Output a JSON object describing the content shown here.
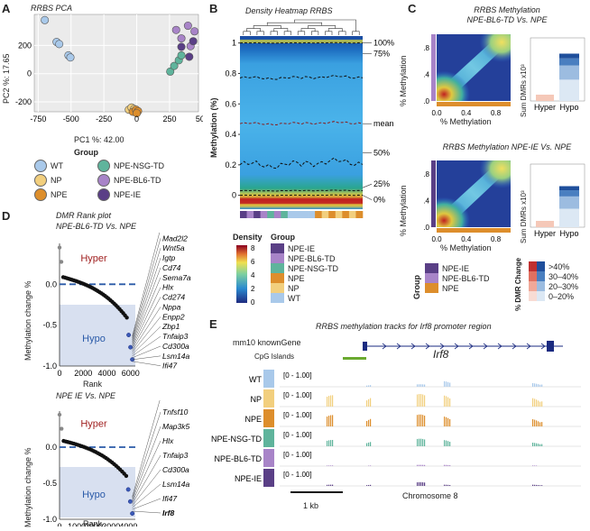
{
  "panels": {
    "a": "A",
    "b": "B",
    "c": "C",
    "d": "D",
    "e": "E"
  },
  "pca": {
    "title": "RRBS PCA",
    "xlabel": "PC1 %: 42.00",
    "ylabel": "PC2 %: 17.65",
    "xticks": [
      "-750",
      "-500",
      "-250",
      "0",
      "250",
      "500"
    ],
    "yticks": [
      "200",
      "0",
      "-200"
    ],
    "legend_title": "Group",
    "legend": [
      {
        "label": "WT",
        "color": "#a9c9ea"
      },
      {
        "label": "NP",
        "color": "#f2cf7e"
      },
      {
        "label": "NPE",
        "color": "#dd8e2c"
      },
      {
        "label": "NPE-NSG-TD",
        "color": "#5fb49c"
      },
      {
        "label": "NPE-BL6-TD",
        "color": "#a884c8"
      },
      {
        "label": "NPE-IE",
        "color": "#5a3f86"
      }
    ]
  },
  "chart_data": [
    {
      "type": "scatter",
      "title": "RRBS PCA",
      "xlabel": "PC1 %: 42.00",
      "ylabel": "PC2 %: 17.65",
      "xlim": [
        -780,
        470
      ],
      "ylim": [
        -270,
        420
      ],
      "series": [
        {
          "name": "WT",
          "points": [
            [
              -700,
              380
            ],
            [
              -610,
              225
            ],
            [
              -590,
              210
            ],
            [
              -520,
              130
            ],
            [
              -505,
              115
            ]
          ]
        },
        {
          "name": "NP",
          "points": [
            [
              -60,
              -255
            ],
            [
              -40,
              -240
            ],
            [
              -20,
              -250
            ]
          ]
        },
        {
          "name": "NPE",
          "points": [
            [
              -30,
              -270
            ],
            [
              -5,
              -255
            ],
            [
              10,
              -265
            ],
            [
              0,
              -280
            ]
          ]
        },
        {
          "name": "NPE-NSG-TD",
          "points": [
            [
              255,
              15
            ],
            [
              285,
              55
            ],
            [
              320,
              95
            ],
            [
              340,
              130
            ]
          ]
        },
        {
          "name": "NPE-BL6-TD",
          "points": [
            [
              300,
              310
            ],
            [
              340,
              250
            ],
            [
              390,
              340
            ],
            [
              410,
              195
            ],
            [
              440,
              300
            ]
          ]
        },
        {
          "name": "NPE-IE",
          "points": [
            [
              340,
              190
            ],
            [
              400,
              120
            ],
            [
              430,
              230
            ]
          ]
        }
      ]
    },
    {
      "type": "line",
      "title": "DMR Rank plot NPE-BL6-TD Vs. NPE",
      "xlabel": "Rank",
      "ylabel": "Methylation change %",
      "xlim": [
        0,
        6400
      ],
      "ylim": [
        -1.0,
        0.5
      ],
      "xticks": [
        "0",
        "2000",
        "4000",
        "6000"
      ],
      "yticks": [
        "0.0",
        "-0.5",
        "-1.0"
      ]
    },
    {
      "type": "line",
      "title": "NPE IE Vs. NPE",
      "xlabel": "Rank",
      "ylabel": "Methylation change %",
      "xlim": [
        0,
        4400
      ],
      "ylim": [
        -1.0,
        0.5
      ],
      "xticks": [
        "0",
        "1000",
        "2000",
        "3000",
        "4000"
      ],
      "yticks": [
        "0.0",
        "-0.5",
        "-1.0"
      ]
    },
    {
      "type": "bar",
      "title": "Sum DMRs x10^3 NPE-BL6-TD Vs. NPE",
      "categories": [
        "Hyper",
        "Hypo"
      ],
      "values": [
        2,
        15
      ]
    },
    {
      "type": "bar",
      "title": "Sum DMRs x10^3 NPE-IE Vs. NPE",
      "categories": [
        "Hyper",
        "Hypo"
      ],
      "values": [
        2,
        13
      ]
    }
  ],
  "heatmap": {
    "title": "Density Heatmap RRBS",
    "ylabel": "Methylation (%)",
    "yticks": [
      "1",
      "0.8",
      "0.6",
      "0.4",
      "0.2",
      "0"
    ],
    "right_labels": [
      "100%",
      "75%",
      "mean",
      "50%",
      "25%",
      "0%"
    ],
    "density_title": "Density",
    "density_ticks": [
      "8",
      "6",
      "4",
      "2",
      "0"
    ],
    "group_title": "Group",
    "group_legend": [
      {
        "label": "NPE-IE",
        "color": "#5a3f86"
      },
      {
        "label": "NPE-BL6-TD",
        "color": "#a884c8"
      },
      {
        "label": "NPE-NSG-TD",
        "color": "#5fb49c"
      },
      {
        "label": "NPE",
        "color": "#dd8e2c"
      },
      {
        "label": "NP",
        "color": "#f2cf7e"
      },
      {
        "label": "WT",
        "color": "#a9c9ea"
      }
    ]
  },
  "dmr": {
    "title1a": "DMR Rank plot",
    "title1b": "NPE-BL6-TD Vs. NPE",
    "title2": "NPE IE Vs. NPE",
    "hyper": "Hyper",
    "hypo": "Hypo",
    "ylabel": "Methylation change %",
    "xlabel": "Rank",
    "yt": [
      "0.0",
      "-0.5",
      "-1.0"
    ],
    "xt1": [
      "0",
      "2000",
      "4000",
      "6000"
    ],
    "xt2": [
      "0",
      "1000",
      "2000",
      "3000",
      "4000"
    ],
    "genes1": [
      "Irf8",
      "Mad2l2",
      "Wnt5a",
      "Igtp",
      "Cd74",
      "Sema7a",
      "Hlx",
      "Cd274",
      "Nppa",
      "Enpp2",
      "Zbp1",
      "Tnfaip3",
      "Cd300a",
      "Lsm14a",
      "Ifi47"
    ],
    "genes2": [
      "Cd274",
      "Tnfsf10",
      "Map3k5",
      "Hlx",
      "Tnfaip3",
      "Cd300a",
      "Lsm14a",
      "Ifi47",
      "Irf8"
    ]
  },
  "meth": {
    "title1a": "RRBS Methylation",
    "title1b": "NPE-BL6-TD Vs. NPE",
    "title2": "RRBS Methylation NPE-IE Vs. NPE",
    "xlabel": "% Methylation",
    "ylabel": "% Methylation",
    "ticks": [
      "0.0",
      "0.4",
      "0.8"
    ],
    "bar_ylabel": "Sum DMRs x10³",
    "bar_cats": [
      "Hyper",
      "Hypo"
    ],
    "group_title": "Group",
    "group_legend": [
      {
        "label": "NPE-IE",
        "color": "#5a3f86"
      },
      {
        "label": "NPE-BL6-TD",
        "color": "#a884c8"
      },
      {
        "label": "NPE",
        "color": "#dd8e2c"
      }
    ],
    "dmr_title": "% DMR Change",
    "dmr_legend": [
      ">40%",
      "30–40%",
      "20–30%",
      "0–20%"
    ]
  },
  "tracks": {
    "title": "RRBS methylation tracks for Irf8 promoter region",
    "known_gene": "mm10 knownGene",
    "cpg": "CpG Islands",
    "gene": "Irf8",
    "range": "[0 - 1.00]",
    "rows": [
      {
        "label": "WT",
        "color": "#a9c9ea"
      },
      {
        "label": "NP",
        "color": "#f2cf7e"
      },
      {
        "label": "NPE",
        "color": "#dd8e2c"
      },
      {
        "label": "NPE-NSG-TD",
        "color": "#5fb49c"
      },
      {
        "label": "NPE-BL6-TD",
        "color": "#a884c8"
      },
      {
        "label": "NPE-IE",
        "color": "#5a3f86"
      }
    ],
    "scale": "1 kb",
    "chrom": "Chromosome 8"
  }
}
